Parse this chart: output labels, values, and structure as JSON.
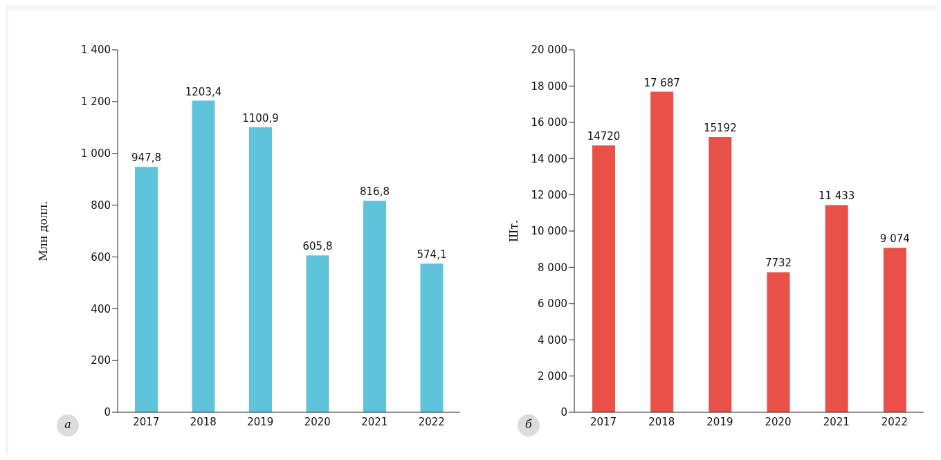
{
  "chart_data": [
    {
      "type": "bar",
      "ylabel": "Млн долл.",
      "categories": [
        "2017",
        "2018",
        "2019",
        "2020",
        "2021",
        "2022"
      ],
      "values": [
        947.8,
        1203.4,
        1100.9,
        605.8,
        816.8,
        574.1
      ],
      "color": "#5fc3db",
      "value_labels": [
        "947,8",
        "1203,4",
        "1100,9",
        "605,8",
        "816,8",
        "574,1"
      ],
      "ylim": [
        0,
        1400
      ],
      "yticks": [
        0,
        200,
        400,
        600,
        800,
        {
          "value": 1000,
          "label": "1 000"
        },
        {
          "value": 1200,
          "label": "1 200"
        },
        {
          "value": 1400,
          "label": "1 400"
        }
      ],
      "grid": false,
      "annotations": [
        "а"
      ]
    },
    {
      "type": "bar",
      "ylabel": "Шт.",
      "categories": [
        "2017",
        "2018",
        "2019",
        "2020",
        "2021",
        "2022"
      ],
      "values": [
        14720,
        17687,
        15192,
        7732,
        11433,
        9074
      ],
      "color": "#e85048",
      "value_labels": [
        "14720",
        "17 687",
        "15192",
        "7732",
        "11 433",
        "9 074"
      ],
      "ylim": [
        0,
        20000
      ],
      "yticks": [
        0,
        {
          "value": 2000,
          "label": "2 000"
        },
        {
          "value": 4000,
          "label": "4 000"
        },
        {
          "value": 6000,
          "label": "6 000"
        },
        {
          "value": 8000,
          "label": "8 000"
        },
        {
          "value": 10000,
          "label": "10 000"
        },
        {
          "value": 12000,
          "label": "12 000"
        },
        {
          "value": 14000,
          "label": "14 000"
        },
        {
          "value": 16000,
          "label": "16 000"
        },
        {
          "value": 18000,
          "label": "18 000"
        },
        {
          "value": 20000,
          "label": "20 000"
        }
      ],
      "grid": false,
      "annotations": [
        "б"
      ]
    }
  ]
}
